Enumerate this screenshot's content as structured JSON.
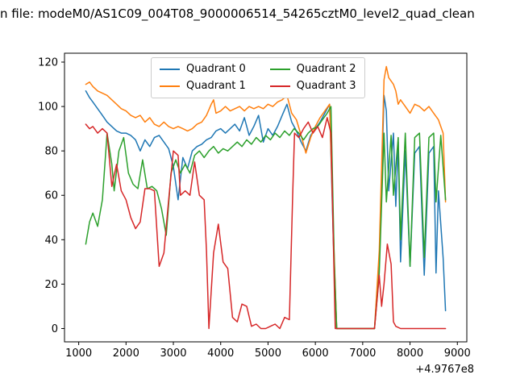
{
  "title": "n file: modeM0/AS1C09_004T08_9000006514_54265cztM0_level2_quad_clean",
  "chart_data": {
    "type": "line",
    "title": "n file: modeM0/AS1C09_004T08_9000006514_54265cztM0_level2_quad_clean",
    "xlabel": "",
    "ylabel": "",
    "x_offset_label": "+4.9767e8",
    "xlim": [
      700,
      9200
    ],
    "ylim": [
      -6,
      124
    ],
    "x_ticks": [
      1000,
      2000,
      3000,
      4000,
      5000,
      6000,
      7000,
      8000,
      9000
    ],
    "y_ticks": [
      0,
      20,
      40,
      60,
      80,
      100,
      120
    ],
    "grid": false,
    "legend_position": "upper center, 2 columns",
    "series": [
      {
        "name": "Quadrant 0",
        "color": "#1f77b4",
        "points": [
          [
            1150,
            107
          ],
          [
            1230,
            104
          ],
          [
            1300,
            102
          ],
          [
            1400,
            99
          ],
          [
            1500,
            96
          ],
          [
            1600,
            93
          ],
          [
            1700,
            91
          ],
          [
            1800,
            89
          ],
          [
            1900,
            88
          ],
          [
            2000,
            88
          ],
          [
            2100,
            87
          ],
          [
            2200,
            85
          ],
          [
            2300,
            80
          ],
          [
            2400,
            85
          ],
          [
            2500,
            82
          ],
          [
            2600,
            86
          ],
          [
            2700,
            87
          ],
          [
            2800,
            84
          ],
          [
            2900,
            81
          ],
          [
            3000,
            73
          ],
          [
            3100,
            58
          ],
          [
            3200,
            77
          ],
          [
            3300,
            72
          ],
          [
            3400,
            80
          ],
          [
            3500,
            82
          ],
          [
            3600,
            83
          ],
          [
            3700,
            85
          ],
          [
            3800,
            86
          ],
          [
            3900,
            89
          ],
          [
            4000,
            90
          ],
          [
            4100,
            88
          ],
          [
            4200,
            90
          ],
          [
            4300,
            92
          ],
          [
            4400,
            89
          ],
          [
            4500,
            95
          ],
          [
            4600,
            87
          ],
          [
            4700,
            91
          ],
          [
            4800,
            96
          ],
          [
            4900,
            84
          ],
          [
            5000,
            90
          ],
          [
            5100,
            87
          ],
          [
            5200,
            91
          ],
          [
            5300,
            96
          ],
          [
            5400,
            101
          ],
          [
            5500,
            93
          ],
          [
            5600,
            89
          ],
          [
            5700,
            84
          ],
          [
            5800,
            80
          ],
          [
            5900,
            87
          ],
          [
            6000,
            90
          ],
          [
            6100,
            93
          ],
          [
            6200,
            97
          ],
          [
            6300,
            101
          ],
          [
            6380,
            40
          ],
          [
            6450,
            0
          ],
          [
            6700,
            0
          ],
          [
            7000,
            0
          ],
          [
            7250,
            0
          ],
          [
            7350,
            30
          ],
          [
            7450,
            105
          ],
          [
            7500,
            98
          ],
          [
            7550,
            62
          ],
          [
            7650,
            88
          ],
          [
            7700,
            55
          ],
          [
            7750,
            84
          ],
          [
            7800,
            30
          ],
          [
            7900,
            80
          ],
          [
            8000,
            28
          ],
          [
            8100,
            79
          ],
          [
            8200,
            82
          ],
          [
            8300,
            24
          ],
          [
            8400,
            79
          ],
          [
            8500,
            82
          ],
          [
            8550,
            25
          ],
          [
            8600,
            62
          ],
          [
            8700,
            32
          ],
          [
            8750,
            8
          ]
        ]
      },
      {
        "name": "Quadrant 1",
        "color": "#ff7f0e",
        "points": [
          [
            1150,
            110
          ],
          [
            1230,
            111
          ],
          [
            1300,
            109
          ],
          [
            1400,
            107
          ],
          [
            1500,
            106
          ],
          [
            1600,
            105
          ],
          [
            1700,
            103
          ],
          [
            1800,
            101
          ],
          [
            1900,
            99
          ],
          [
            2000,
            98
          ],
          [
            2100,
            96
          ],
          [
            2200,
            95
          ],
          [
            2300,
            96
          ],
          [
            2400,
            93
          ],
          [
            2500,
            95
          ],
          [
            2600,
            92
          ],
          [
            2700,
            91
          ],
          [
            2800,
            93
          ],
          [
            2900,
            91
          ],
          [
            3000,
            90
          ],
          [
            3100,
            91
          ],
          [
            3200,
            90
          ],
          [
            3300,
            89
          ],
          [
            3400,
            90
          ],
          [
            3500,
            92
          ],
          [
            3600,
            93
          ],
          [
            3700,
            96
          ],
          [
            3800,
            101
          ],
          [
            3850,
            103
          ],
          [
            3900,
            97
          ],
          [
            4000,
            98
          ],
          [
            4100,
            100
          ],
          [
            4200,
            98
          ],
          [
            4300,
            99
          ],
          [
            4400,
            100
          ],
          [
            4500,
            98
          ],
          [
            4600,
            100
          ],
          [
            4700,
            99
          ],
          [
            4800,
            100
          ],
          [
            4900,
            99
          ],
          [
            5000,
            101
          ],
          [
            5100,
            100
          ],
          [
            5200,
            102
          ],
          [
            5300,
            103
          ],
          [
            5400,
            105
          ],
          [
            5500,
            97
          ],
          [
            5600,
            94
          ],
          [
            5700,
            87
          ],
          [
            5800,
            79
          ],
          [
            5900,
            86
          ],
          [
            6000,
            91
          ],
          [
            6100,
            95
          ],
          [
            6200,
            98
          ],
          [
            6300,
            101
          ],
          [
            6380,
            45
          ],
          [
            6450,
            0
          ],
          [
            6700,
            0
          ],
          [
            7000,
            0
          ],
          [
            7250,
            0
          ],
          [
            7350,
            35
          ],
          [
            7450,
            112
          ],
          [
            7500,
            118
          ],
          [
            7550,
            113
          ],
          [
            7650,
            110
          ],
          [
            7700,
            107
          ],
          [
            7750,
            101
          ],
          [
            7800,
            103
          ],
          [
            7900,
            100
          ],
          [
            8000,
            97
          ],
          [
            8100,
            101
          ],
          [
            8200,
            100
          ],
          [
            8300,
            98
          ],
          [
            8400,
            100
          ],
          [
            8500,
            97
          ],
          [
            8600,
            94
          ],
          [
            8700,
            88
          ],
          [
            8750,
            57
          ]
        ]
      },
      {
        "name": "Quadrant 2",
        "color": "#2ca02c",
        "points": [
          [
            1150,
            38
          ],
          [
            1230,
            48
          ],
          [
            1300,
            52
          ],
          [
            1400,
            46
          ],
          [
            1500,
            58
          ],
          [
            1600,
            88
          ],
          [
            1700,
            74
          ],
          [
            1750,
            62
          ],
          [
            1850,
            80
          ],
          [
            1950,
            86
          ],
          [
            2050,
            70
          ],
          [
            2150,
            65
          ],
          [
            2250,
            63
          ],
          [
            2350,
            76
          ],
          [
            2450,
            63
          ],
          [
            2550,
            64
          ],
          [
            2650,
            62
          ],
          [
            2750,
            54
          ],
          [
            2850,
            42
          ],
          [
            2950,
            70
          ],
          [
            3050,
            76
          ],
          [
            3150,
            70
          ],
          [
            3250,
            74
          ],
          [
            3350,
            70
          ],
          [
            3450,
            78
          ],
          [
            3550,
            80
          ],
          [
            3650,
            77
          ],
          [
            3750,
            80
          ],
          [
            3850,
            82
          ],
          [
            3950,
            79
          ],
          [
            4050,
            81
          ],
          [
            4150,
            80
          ],
          [
            4250,
            82
          ],
          [
            4350,
            84
          ],
          [
            4450,
            82
          ],
          [
            4550,
            85
          ],
          [
            4650,
            83
          ],
          [
            4750,
            86
          ],
          [
            4850,
            84
          ],
          [
            4950,
            87
          ],
          [
            5050,
            85
          ],
          [
            5150,
            88
          ],
          [
            5250,
            86
          ],
          [
            5350,
            89
          ],
          [
            5450,
            87
          ],
          [
            5550,
            90
          ],
          [
            5650,
            88
          ],
          [
            5750,
            85
          ],
          [
            5850,
            88
          ],
          [
            5950,
            90
          ],
          [
            6050,
            91
          ],
          [
            6150,
            94
          ],
          [
            6250,
            97
          ],
          [
            6330,
            100
          ],
          [
            6400,
            30
          ],
          [
            6450,
            0
          ],
          [
            6700,
            0
          ],
          [
            7000,
            0
          ],
          [
            7250,
            0
          ],
          [
            7350,
            25
          ],
          [
            7450,
            88
          ],
          [
            7500,
            57
          ],
          [
            7600,
            87
          ],
          [
            7650,
            60
          ],
          [
            7750,
            86
          ],
          [
            7800,
            40
          ],
          [
            7900,
            88
          ],
          [
            8000,
            28
          ],
          [
            8100,
            86
          ],
          [
            8200,
            88
          ],
          [
            8300,
            32
          ],
          [
            8400,
            86
          ],
          [
            8500,
            88
          ],
          [
            8550,
            57
          ],
          [
            8650,
            87
          ],
          [
            8750,
            58
          ]
        ]
      },
      {
        "name": "Quadrant 3",
        "color": "#d62728",
        "points": [
          [
            1150,
            92
          ],
          [
            1230,
            90
          ],
          [
            1300,
            91
          ],
          [
            1400,
            88
          ],
          [
            1500,
            90
          ],
          [
            1600,
            88
          ],
          [
            1700,
            64
          ],
          [
            1800,
            74
          ],
          [
            1900,
            62
          ],
          [
            2000,
            58
          ],
          [
            2100,
            50
          ],
          [
            2200,
            45
          ],
          [
            2300,
            48
          ],
          [
            2400,
            63
          ],
          [
            2500,
            63
          ],
          [
            2600,
            62
          ],
          [
            2700,
            28
          ],
          [
            2800,
            34
          ],
          [
            2900,
            58
          ],
          [
            3000,
            80
          ],
          [
            3100,
            78
          ],
          [
            3150,
            60
          ],
          [
            3250,
            62
          ],
          [
            3350,
            60
          ],
          [
            3450,
            75
          ],
          [
            3550,
            60
          ],
          [
            3650,
            58
          ],
          [
            3700,
            35
          ],
          [
            3750,
            0
          ],
          [
            3850,
            34
          ],
          [
            3950,
            47
          ],
          [
            4050,
            30
          ],
          [
            4150,
            27
          ],
          [
            4250,
            5
          ],
          [
            4350,
            3
          ],
          [
            4450,
            11
          ],
          [
            4550,
            10
          ],
          [
            4650,
            1
          ],
          [
            4750,
            2
          ],
          [
            4850,
            0
          ],
          [
            4950,
            0
          ],
          [
            5050,
            1
          ],
          [
            5150,
            2
          ],
          [
            5250,
            0
          ],
          [
            5350,
            5
          ],
          [
            5450,
            4
          ],
          [
            5520,
            60
          ],
          [
            5560,
            88
          ],
          [
            5650,
            86
          ],
          [
            5750,
            90
          ],
          [
            5850,
            93
          ],
          [
            5950,
            88
          ],
          [
            6050,
            91
          ],
          [
            6150,
            86
          ],
          [
            6250,
            95
          ],
          [
            6330,
            88
          ],
          [
            6420,
            0
          ],
          [
            6700,
            0
          ],
          [
            7000,
            0
          ],
          [
            7250,
            0
          ],
          [
            7350,
            24
          ],
          [
            7400,
            10
          ],
          [
            7450,
            20
          ],
          [
            7520,
            38
          ],
          [
            7600,
            29
          ],
          [
            7650,
            3
          ],
          [
            7700,
            1
          ],
          [
            7800,
            0
          ],
          [
            8000,
            0
          ],
          [
            8200,
            0
          ],
          [
            8400,
            0
          ],
          [
            8600,
            0
          ],
          [
            8750,
            0
          ]
        ]
      }
    ]
  }
}
